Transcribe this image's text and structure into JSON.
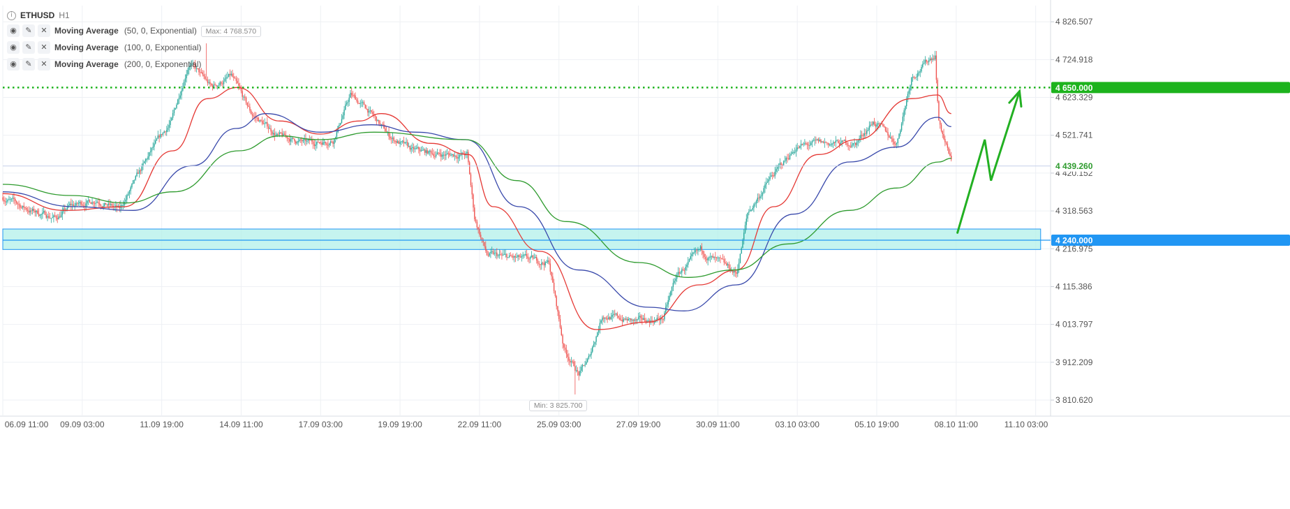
{
  "symbol": "ETHUSD",
  "timeframe": "H1",
  "indicators": [
    {
      "name": "Moving Average",
      "params": "(50, 0, Exponential)",
      "color": "#e53935"
    },
    {
      "name": "Moving Average",
      "params": "(100, 0, Exponential)",
      "color": "#3949ab"
    },
    {
      "name": "Moving Average",
      "params": "(200, 0, Exponential)",
      "color": "#2e9b2e"
    }
  ],
  "labels": {
    "max": "Max: 4 768.570",
    "min": "Min: 3 825.700"
  },
  "colors": {
    "bull": "#26a69a",
    "bear": "#ef5350",
    "level_green": "#1db31d",
    "zone_fill": "#b2f0ea",
    "zone_line": "#2196f3",
    "current_price": "#2e9b2e",
    "arrow": "#22b022"
  },
  "chart_data": {
    "type": "candlestick",
    "ylim": [
      3775,
      4870
    ],
    "y_ticks": [
      "4 826.507",
      "4 724.918",
      "4 623.329",
      "4 521.741",
      "4 420.152",
      "4 318.563",
      "4 216.975",
      "4 115.386",
      "4 013.797",
      "3 912.209",
      "3 810.620"
    ],
    "x_ticks": [
      "06.09 11:00",
      "09.09 03:00",
      "11.09 19:00",
      "14.09 11:00",
      "17.09 03:00",
      "19.09 19:00",
      "22.09 11:00",
      "25.09 03:00",
      "27.09 19:00",
      "30.09 11:00",
      "03.10 03:00",
      "05.10 19:00",
      "08.10 11:00",
      "11.10 03:00"
    ],
    "x_range": [
      "06.09 11:00",
      "11.10 15:00"
    ],
    "max_price": 4768.57,
    "min_price": 3825.7,
    "price_anchors": [
      [
        "06.09 11:00",
        4355
      ],
      [
        "07.09 09:00",
        4320
      ],
      [
        "08.09 06:00",
        4300
      ],
      [
        "08.09 17:00",
        4330
      ],
      [
        "09.09 15:00",
        4350
      ],
      [
        "10.09 09:00",
        4320
      ],
      [
        "10.09 22:00",
        4400
      ],
      [
        "11.09 11:00",
        4480
      ],
      [
        "12.09 03:00",
        4560
      ],
      [
        "12.09 17:00",
        4720
      ],
      [
        "13.09 11:00",
        4650
      ],
      [
        "14.09 03:00",
        4680
      ],
      [
        "14.09 19:00",
        4580
      ],
      [
        "15.09 17:00",
        4520
      ],
      [
        "16.09 16:00",
        4500
      ],
      [
        "17.09 13:00",
        4510
      ],
      [
        "18.09 03:00",
        4630
      ],
      [
        "18.09 17:00",
        4590
      ],
      [
        "19.09 10:00",
        4520
      ],
      [
        "20.09 05:00",
        4480
      ],
      [
        "21.09 06:00",
        4470
      ],
      [
        "22.09 01:00",
        4470
      ],
      [
        "22.09 07:00",
        4300
      ],
      [
        "22.09 17:00",
        4200
      ],
      [
        "23.09 17:00",
        4190
      ],
      [
        "24.09 19:00",
        4180
      ],
      [
        "25.09 07:00",
        3950
      ],
      [
        "25.09 19:00",
        3880
      ],
      [
        "26.09 03:00",
        3920
      ],
      [
        "26.09 14:00",
        4040
      ],
      [
        "27.09 17:00",
        4020
      ],
      [
        "28.09 15:00",
        4030
      ],
      [
        "29.09 01:00",
        4140
      ],
      [
        "29.09 21:00",
        4210
      ],
      [
        "30.09 11:00",
        4180
      ],
      [
        "01.10 02:00",
        4150
      ],
      [
        "01.10 11:00",
        4310
      ],
      [
        "02.10 04:00",
        4400
      ],
      [
        "03.10 02:00",
        4490
      ],
      [
        "03.10 21:00",
        4500
      ],
      [
        "05.10 02:00",
        4500
      ],
      [
        "05.10 16:00",
        4560
      ],
      [
        "06.10 11:00",
        4500
      ],
      [
        "06.10 23:00",
        4680
      ],
      [
        "07.10 18:00",
        4740
      ],
      [
        "07.10 21:00",
        4560
      ],
      [
        "08.10 07:00",
        4450
      ]
    ],
    "ma_anchors": {
      "ma50": [
        [
          "06.09 11:00",
          4365
        ],
        [
          "08.09 13:00",
          4320
        ],
        [
          "10.09 13:00",
          4330
        ],
        [
          "12.09 04:00",
          4480
        ],
        [
          "13.09 08:00",
          4620
        ],
        [
          "14.09 08:00",
          4650
        ],
        [
          "15.09 18:00",
          4560
        ],
        [
          "17.09 03:00",
          4525
        ],
        [
          "18.09 10:00",
          4560
        ],
        [
          "19.09 04:00",
          4580
        ],
        [
          "20.09 20:00",
          4500
        ],
        [
          "22.09 02:00",
          4470
        ],
        [
          "22.09 22:00",
          4330
        ],
        [
          "24.09 12:00",
          4210
        ],
        [
          "26.09 09:00",
          4000
        ],
        [
          "28.09 03:00",
          4020
        ],
        [
          "29.09 20:00",
          4120
        ],
        [
          "01.10 02:00",
          4160
        ],
        [
          "02.10 08:00",
          4330
        ],
        [
          "03.10 20:00",
          4470
        ],
        [
          "05.10 03:00",
          4510
        ],
        [
          "06.10 23:00",
          4620
        ],
        [
          "07.10 20:00",
          4630
        ],
        [
          "08.10 07:00",
          4580
        ]
      ],
      "ma100": [
        [
          "06.09 11:00",
          4370
        ],
        [
          "08.09 20:00",
          4330
        ],
        [
          "10.09 20:00",
          4320
        ],
        [
          "12.09 20:00",
          4440
        ],
        [
          "14.09 07:00",
          4540
        ],
        [
          "15.09 07:00",
          4580
        ],
        [
          "17.09 03:00",
          4530
        ],
        [
          "18.09 20:00",
          4550
        ],
        [
          "20.09 08:00",
          4530
        ],
        [
          "22.09 00:00",
          4510
        ],
        [
          "23.09 19:00",
          4330
        ],
        [
          "25.09 19:00",
          4160
        ],
        [
          "28.09 03:00",
          4060
        ],
        [
          "29.09 08:00",
          4050
        ],
        [
          "01.10 02:00",
          4120
        ],
        [
          "03.10 00:00",
          4310
        ],
        [
          "04.10 21:00",
          4450
        ],
        [
          "06.10 11:00",
          4490
        ],
        [
          "07.10 20:00",
          4570
        ],
        [
          "08.10 07:00",
          4545
        ]
      ],
      "ma200": [
        [
          "06.09 11:00",
          4390
        ],
        [
          "08.09 18:00",
          4360
        ],
        [
          "10.09 14:00",
          4340
        ],
        [
          "12.09 05:00",
          4370
        ],
        [
          "14.09 09:00",
          4480
        ],
        [
          "15.09 18:00",
          4520
        ],
        [
          "17.09 02:00",
          4510
        ],
        [
          "18.09 22:00",
          4530
        ],
        [
          "22.09 00:00",
          4510
        ],
        [
          "23.09 17:00",
          4400
        ],
        [
          "25.09 09:00",
          4290
        ],
        [
          "27.09 19:00",
          4180
        ],
        [
          "29.09 11:00",
          4140
        ],
        [
          "01.10 00:00",
          4160
        ],
        [
          "02.10 20:00",
          4230
        ],
        [
          "04.10 21:00",
          4320
        ],
        [
          "06.10 11:00",
          4380
        ],
        [
          "07.10 21:00",
          4450
        ],
        [
          "08.10 07:00",
          4460
        ]
      ]
    },
    "levels": [
      {
        "price": 4650.0,
        "label": "4 650.000",
        "style": "dotted",
        "color": "#1db31d"
      },
      {
        "price": 4240.0,
        "label": "4 240.000",
        "style": "solid",
        "color": "#2196f3"
      }
    ],
    "current_price": {
      "price": 4439.26,
      "label": "4 439.260"
    },
    "zone": {
      "from_price": 4215,
      "to_price": 4270,
      "from_time": "06.09 11:00",
      "to_time": "11.10 07:00"
    },
    "projection_arrow": [
      [
        "08.10 12:00",
        4260
      ],
      [
        "09.10 10:00",
        4510
      ],
      [
        "09.10 15:00",
        4400
      ],
      [
        "10.10 14:00",
        4640
      ]
    ]
  }
}
